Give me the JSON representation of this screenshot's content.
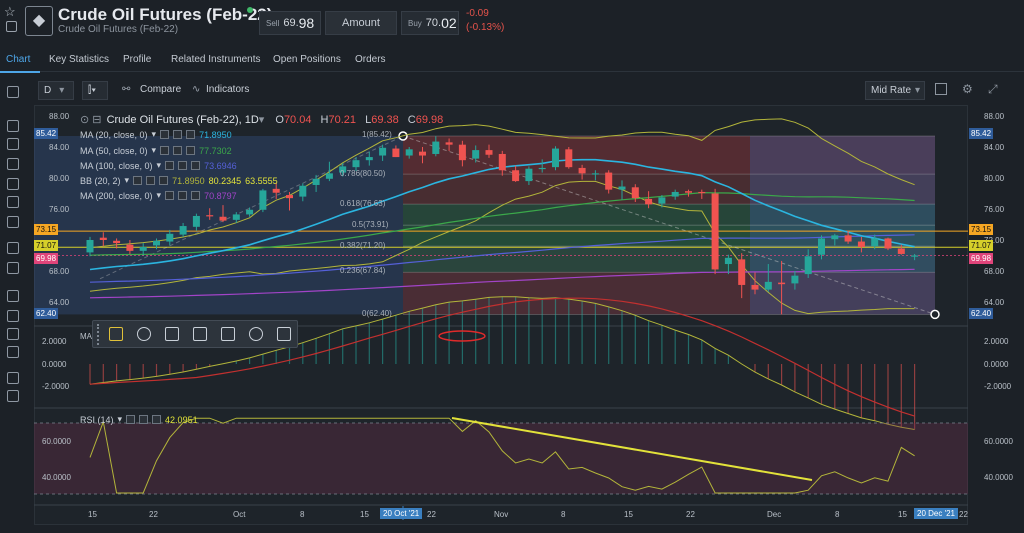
{
  "header": {
    "title": "Crude Oil Futures (Feb-22)",
    "subtitle": "Crude Oil Futures (Feb-22)",
    "sell_label": "Sell",
    "sell_small": "69.",
    "sell_big": "98",
    "amount_label": "Amount",
    "buy_label": "Buy",
    "buy_small": "70.",
    "buy_big": "02",
    "change": "-0.09",
    "change_pct": "(-0.13%)"
  },
  "tabs": [
    "Chart",
    "Key Statistics",
    "Profile",
    "Related Instruments",
    "Open Positions",
    "Orders"
  ],
  "toolbar": {
    "interval": "D",
    "compare": "Compare",
    "indicators": "Indicators",
    "rate": "Mid Rate"
  },
  "legend": {
    "symbol": "Crude Oil Futures (Feb-22), 1D",
    "o_label": "O",
    "open": "70.04",
    "h_label": "H",
    "high": "70.21",
    "l_label": "L",
    "low": "69.38",
    "c_label": "C",
    "close": "69.98",
    "rows": [
      {
        "name": "MA (20, close, 0)",
        "value": "71.8950"
      },
      {
        "name": "MA (50, close, 0)",
        "value": "77.7302"
      },
      {
        "name": "MA (100, close, 0)",
        "value": "73.6946"
      },
      {
        "name": "BB (20, 2)",
        "value": "71.8950",
        "value2": "80.2345",
        "value3": "63.5555"
      },
      {
        "name": "MA (200, close, 0)",
        "value": "70.8797"
      }
    ]
  },
  "fib": [
    "1(85.42)",
    "0.786(80.50)",
    "0.618(76.63)",
    "0.5(73.91)",
    "0.382(71.20)",
    "0.236(67.84)",
    "0(62.40)"
  ],
  "price_axis": [
    "88.00",
    "84.00",
    "80.00",
    "76.00",
    "72.00",
    "68.00",
    "64.00"
  ],
  "price_tags": {
    "top": "85.42",
    "p1": "73.15",
    "p2": "71.07",
    "last": "69.98",
    "bottom": "62.40"
  },
  "macd": {
    "label": "MA",
    "axis": [
      "2.0000",
      "0.0000",
      "-2.0000"
    ]
  },
  "rsi": {
    "label": "RSI (14)",
    "value": "42.0951",
    "axis": [
      "60.0000",
      "40.0000"
    ]
  },
  "time_axis": [
    "15",
    "22",
    "Oct",
    "8",
    "15",
    "22",
    "Nov",
    "8",
    "15",
    "22",
    "Dec",
    "8",
    "15",
    "22"
  ],
  "date_tags": {
    "cursor": "20 Oct '21",
    "end": "20 Dec '21"
  },
  "colors": {
    "up": "#26a69a",
    "down": "#ef5350",
    "ma20": "#2bb5e0",
    "ma50": "#3ba84a",
    "ma100": "#5560d8",
    "bb": "#b3b53a",
    "ma200": "#a244c8",
    "trend": "#e2e23a"
  },
  "candles": [
    {
      "o": 70.4,
      "h": 72.4,
      "l": 69.9,
      "c": 72.0
    },
    {
      "o": 72.3,
      "h": 73.0,
      "l": 71.2,
      "c": 72.0
    },
    {
      "o": 71.9,
      "h": 72.2,
      "l": 70.9,
      "c": 71.6
    },
    {
      "o": 71.4,
      "h": 72.0,
      "l": 70.2,
      "c": 70.6
    },
    {
      "o": 70.6,
      "h": 71.6,
      "l": 70.0,
      "c": 71.1
    },
    {
      "o": 71.3,
      "h": 72.2,
      "l": 70.8,
      "c": 71.9
    },
    {
      "o": 71.8,
      "h": 73.3,
      "l": 71.3,
      "c": 72.8
    },
    {
      "o": 72.7,
      "h": 74.2,
      "l": 72.4,
      "c": 73.8
    },
    {
      "o": 73.7,
      "h": 75.4,
      "l": 73.2,
      "c": 75.1
    },
    {
      "o": 75.2,
      "h": 76.1,
      "l": 74.6,
      "c": 75.1
    },
    {
      "o": 75.0,
      "h": 76.5,
      "l": 74.3,
      "c": 74.5
    },
    {
      "o": 74.6,
      "h": 75.6,
      "l": 74.2,
      "c": 75.3
    },
    {
      "o": 75.3,
      "h": 76.2,
      "l": 75.0,
      "c": 75.9
    },
    {
      "o": 75.9,
      "h": 78.6,
      "l": 75.6,
      "c": 78.4
    },
    {
      "o": 78.6,
      "h": 79.4,
      "l": 77.3,
      "c": 78.1
    },
    {
      "o": 77.8,
      "h": 78.2,
      "l": 75.8,
      "c": 77.4
    },
    {
      "o": 77.6,
      "h": 79.3,
      "l": 77.0,
      "c": 79.0
    },
    {
      "o": 79.1,
      "h": 80.4,
      "l": 78.2,
      "c": 79.9
    },
    {
      "o": 79.9,
      "h": 82.1,
      "l": 79.6,
      "c": 80.6
    },
    {
      "o": 80.7,
      "h": 81.9,
      "l": 80.2,
      "c": 81.5
    },
    {
      "o": 81.4,
      "h": 82.7,
      "l": 80.9,
      "c": 82.3
    },
    {
      "o": 82.3,
      "h": 83.4,
      "l": 81.6,
      "c": 82.7
    },
    {
      "o": 82.9,
      "h": 84.3,
      "l": 82.2,
      "c": 83.9
    },
    {
      "o": 83.8,
      "h": 84.2,
      "l": 82.7,
      "c": 82.7
    },
    {
      "o": 82.9,
      "h": 84.0,
      "l": 82.5,
      "c": 83.7
    },
    {
      "o": 83.4,
      "h": 84.0,
      "l": 81.9,
      "c": 82.9
    },
    {
      "o": 83.1,
      "h": 85.4,
      "l": 82.8,
      "c": 84.7
    },
    {
      "o": 84.6,
      "h": 85.1,
      "l": 83.5,
      "c": 84.3
    },
    {
      "o": 84.3,
      "h": 84.8,
      "l": 81.5,
      "c": 82.3
    },
    {
      "o": 82.5,
      "h": 84.2,
      "l": 82.0,
      "c": 83.6
    },
    {
      "o": 83.6,
      "h": 84.3,
      "l": 82.6,
      "c": 83.0
    },
    {
      "o": 83.1,
      "h": 83.5,
      "l": 80.3,
      "c": 81.0
    },
    {
      "o": 81.0,
      "h": 81.6,
      "l": 79.5,
      "c": 79.6
    },
    {
      "o": 79.6,
      "h": 81.5,
      "l": 79.1,
      "c": 81.2
    },
    {
      "o": 81.2,
      "h": 82.4,
      "l": 80.7,
      "c": 81.3
    },
    {
      "o": 81.4,
      "h": 84.1,
      "l": 81.0,
      "c": 83.8
    },
    {
      "o": 83.7,
      "h": 84.0,
      "l": 81.2,
      "c": 81.4
    },
    {
      "o": 81.3,
      "h": 81.7,
      "l": 79.8,
      "c": 80.6
    },
    {
      "o": 80.6,
      "h": 81.0,
      "l": 79.7,
      "c": 80.6
    },
    {
      "o": 80.7,
      "h": 81.0,
      "l": 78.0,
      "c": 78.5
    },
    {
      "o": 78.5,
      "h": 79.7,
      "l": 77.2,
      "c": 78.9
    },
    {
      "o": 78.8,
      "h": 79.2,
      "l": 76.9,
      "c": 77.4
    },
    {
      "o": 77.3,
      "h": 78.3,
      "l": 76.1,
      "c": 76.6
    },
    {
      "o": 76.7,
      "h": 77.8,
      "l": 76.2,
      "c": 77.5
    },
    {
      "o": 77.6,
      "h": 78.5,
      "l": 77.2,
      "c": 78.2
    },
    {
      "o": 78.3,
      "h": 78.5,
      "l": 77.6,
      "c": 78.1
    },
    {
      "o": 78.2,
      "h": 78.5,
      "l": 77.3,
      "c": 78.1
    },
    {
      "o": 78.0,
      "h": 78.6,
      "l": 67.6,
      "c": 68.2
    },
    {
      "o": 68.9,
      "h": 70.1,
      "l": 67.6,
      "c": 69.7
    },
    {
      "o": 69.5,
      "h": 70.3,
      "l": 64.5,
      "c": 66.2
    },
    {
      "o": 66.2,
      "h": 67.8,
      "l": 65.0,
      "c": 65.6
    },
    {
      "o": 65.6,
      "h": 68.9,
      "l": 65.3,
      "c": 66.6
    },
    {
      "o": 66.5,
      "h": 69.3,
      "l": 62.4,
      "c": 66.3
    },
    {
      "o": 66.4,
      "h": 68.0,
      "l": 65.6,
      "c": 67.4
    },
    {
      "o": 67.6,
      "h": 70.8,
      "l": 67.1,
      "c": 69.9
    },
    {
      "o": 70.1,
      "h": 72.6,
      "l": 69.5,
      "c": 72.2
    },
    {
      "o": 72.1,
      "h": 72.8,
      "l": 71.3,
      "c": 72.6
    },
    {
      "o": 72.6,
      "h": 73.2,
      "l": 71.5,
      "c": 71.8
    },
    {
      "o": 71.8,
      "h": 72.4,
      "l": 70.4,
      "c": 71.1
    },
    {
      "o": 71.2,
      "h": 72.7,
      "l": 70.8,
      "c": 72.2
    },
    {
      "o": 72.2,
      "h": 72.3,
      "l": 70.7,
      "c": 70.9
    },
    {
      "o": 70.9,
      "h": 71.4,
      "l": 70.1,
      "c": 70.2
    },
    {
      "o": 70.0,
      "h": 70.2,
      "l": 69.4,
      "c": 70.0
    }
  ]
}
